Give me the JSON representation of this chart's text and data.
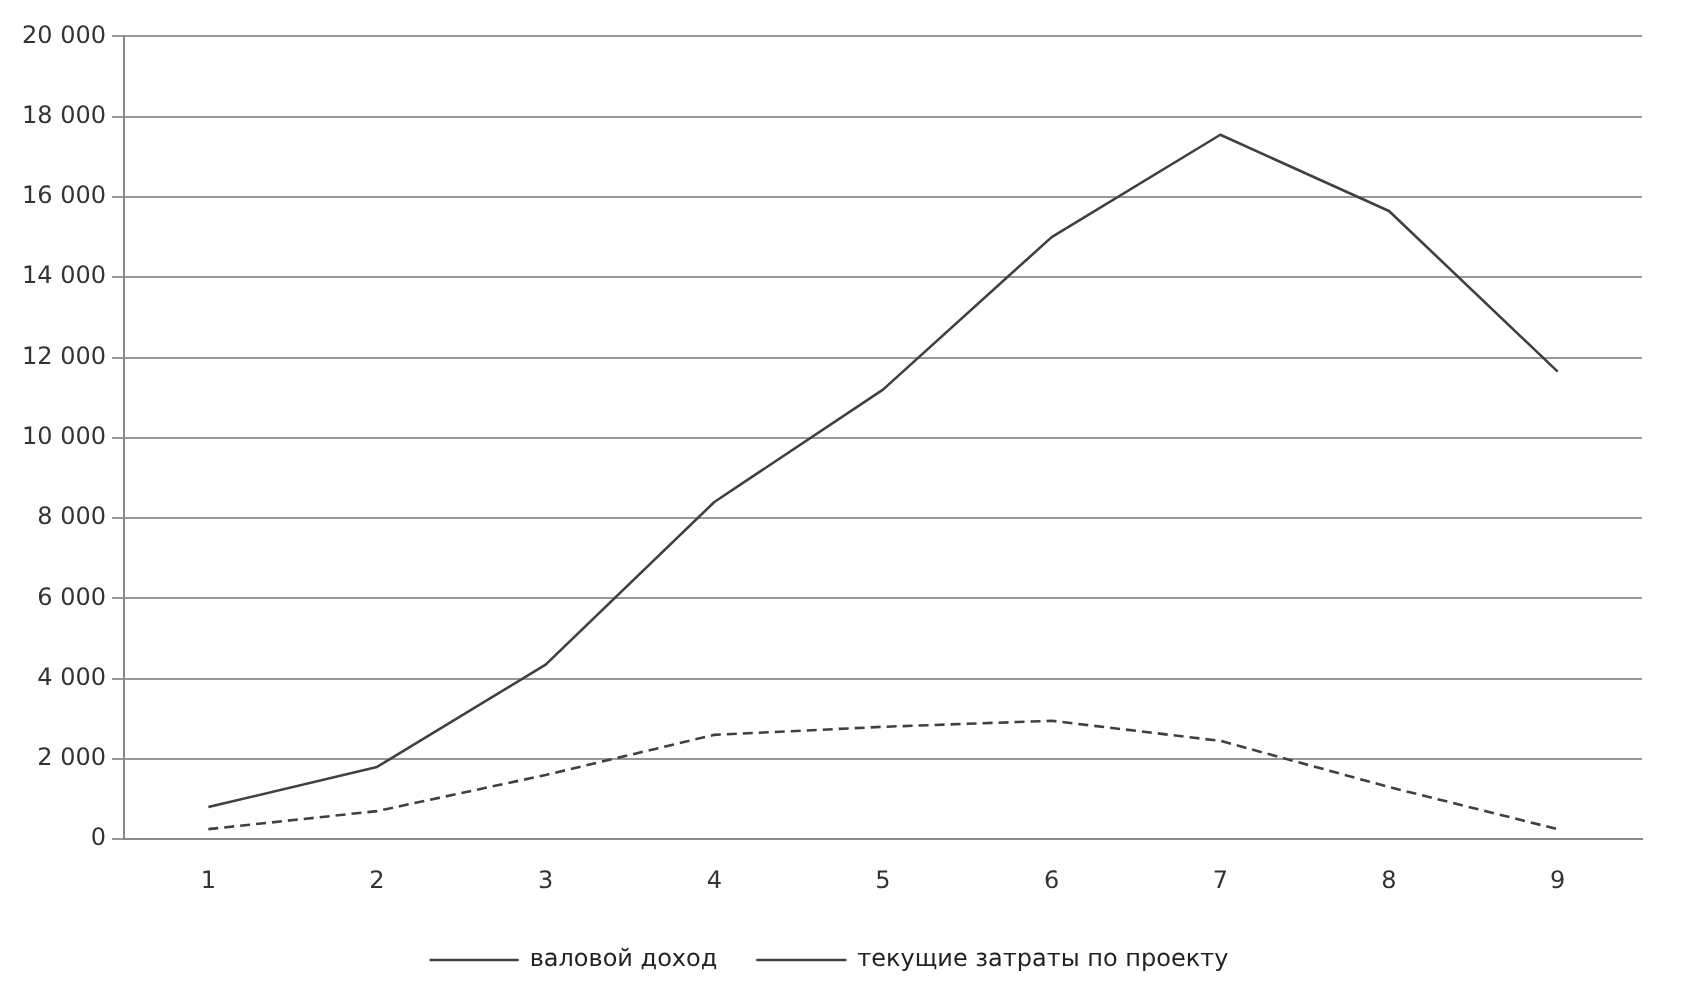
{
  "chart_data": {
    "type": "line",
    "categories": [
      "1",
      "2",
      "3",
      "4",
      "5",
      "6",
      "7",
      "8",
      "9"
    ],
    "series": [
      {
        "name": "валовой доход",
        "color": "#404040",
        "line_style": "dashed",
        "values": [
          250,
          700,
          1600,
          2600,
          2800,
          2950,
          2450,
          1300,
          250
        ]
      },
      {
        "name": "текущие затраты по проекту",
        "color": "#404040",
        "line_style": "solid",
        "values": [
          800,
          1800,
          4350,
          8400,
          11200,
          15000,
          17550,
          15650,
          11650
        ]
      }
    ],
    "ylim": [
      0,
      20000
    ],
    "yticks": [
      0,
      {
        "value": 2000,
        "label": "2 000"
      },
      {
        "value": 4000,
        "label": "4 000"
      },
      {
        "value": 6000,
        "label": "6 000"
      },
      {
        "value": 8000,
        "label": "8 000"
      },
      {
        "value": 10000,
        "label": "10 000"
      },
      {
        "value": 12000,
        "label": "12 000"
      },
      {
        "value": 14000,
        "label": "14 000"
      },
      {
        "value": 16000,
        "label": "16 000"
      },
      {
        "value": 18000,
        "label": "18 000"
      },
      {
        "value": 20000,
        "label": "20 000"
      }
    ],
    "grid": "y",
    "legend": "bottom",
    "marker": "none"
  }
}
